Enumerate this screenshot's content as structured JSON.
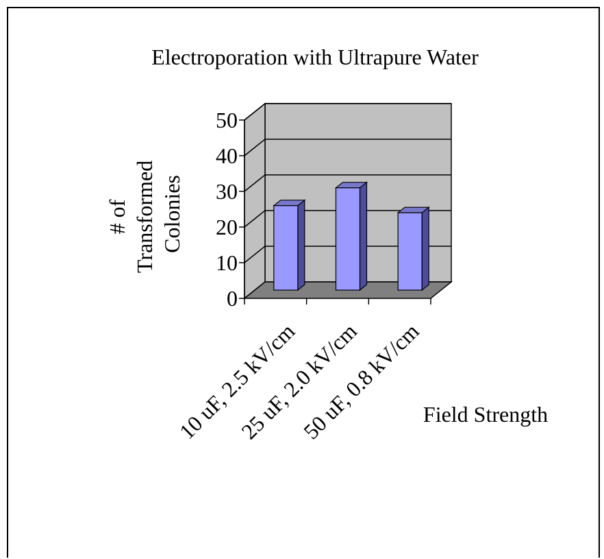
{
  "chart_data": {
    "type": "bar",
    "style": "3d-column",
    "title": "Electroporation with Ultrapure Water",
    "ylabel_lines": [
      "# of",
      "Transformed",
      "Colonies"
    ],
    "xlabel": "Field Strength",
    "categories": [
      "10 uF, 2.5 kV/cm",
      "25 uF, 2.0 kV/cm",
      "50 uF, 0.8 kV/cm"
    ],
    "values": [
      26,
      31,
      24
    ],
    "ylim": [
      0,
      50
    ],
    "yticks": [
      0,
      10,
      20,
      30,
      40,
      50
    ],
    "grid": true,
    "legend": "none",
    "colors": {
      "bar_front": "#9999ff",
      "bar_side": "#4d4d99",
      "bar_top": "#7777cc",
      "back_wall": "#c0c0c0",
      "floor": "#808080"
    }
  }
}
